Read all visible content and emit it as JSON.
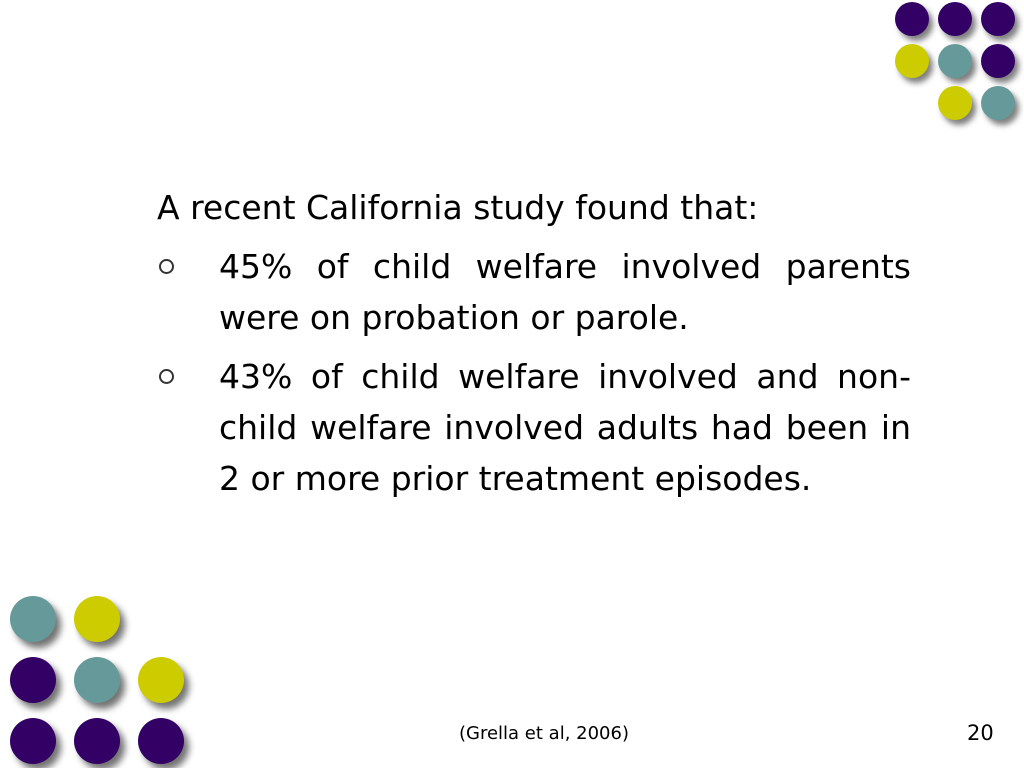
{
  "colors": {
    "purple": "#330066",
    "teal": "#669999",
    "yellow": "#cccc00"
  },
  "content": {
    "intro": "A recent California study found that:",
    "bullets": [
      {
        "text": "45% of child welfare involved parents were on probation or parole."
      },
      {
        "text": "43% of child welfare involved and non-child welfare involved adults had been in 2 or more prior treatment episodes."
      }
    ]
  },
  "footer": {
    "citation": "(Grella et al, 2006)",
    "slide_number": "20"
  }
}
